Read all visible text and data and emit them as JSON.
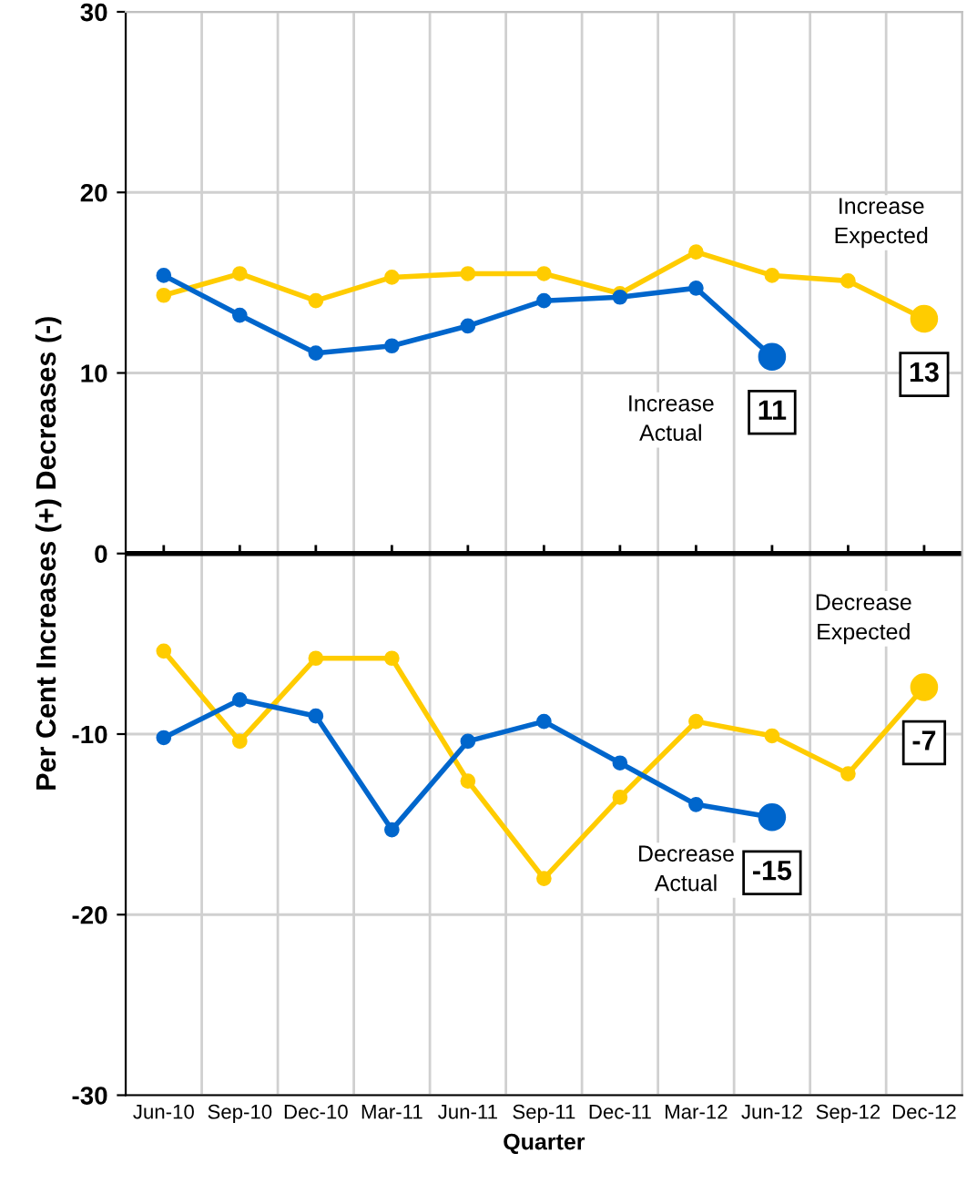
{
  "chart_data": {
    "type": "line",
    "xlabel": "Quarter",
    "ylabel": "Per Cent Increases (+) Decreases (-)",
    "categories": [
      "Jun-10",
      "Sep-10",
      "Dec-10",
      "Mar-11",
      "Jun-11",
      "Sep-11",
      "Dec-11",
      "Mar-12",
      "Jun-12",
      "Sep-12",
      "Dec-12"
    ],
    "ylim": [
      -30,
      30
    ],
    "yticks": [
      -30,
      -20,
      -10,
      0,
      10,
      20,
      30
    ],
    "grid": true,
    "marker": "circle",
    "line_style": "solid",
    "ref_lines": [
      {
        "axis": "y",
        "value": 0,
        "color": "#000000"
      }
    ],
    "series": [
      {
        "name": "Increase Actual",
        "color": "#0066cc",
        "values": [
          15.4,
          13.2,
          11.1,
          11.5,
          12.6,
          14.0,
          14.2,
          14.7,
          10.9,
          null,
          null
        ],
        "value_labels": [
          null,
          null,
          null,
          null,
          null,
          null,
          null,
          null,
          "11",
          null,
          null
        ]
      },
      {
        "name": "Increase Expected",
        "color": "#ffcc00",
        "values": [
          14.3,
          15.5,
          14.0,
          15.3,
          15.5,
          15.5,
          14.4,
          16.7,
          15.4,
          15.1,
          13.0
        ],
        "value_labels": [
          null,
          null,
          null,
          null,
          null,
          null,
          null,
          null,
          null,
          null,
          "13"
        ]
      },
      {
        "name": "Decrease Actual",
        "color": "#0066cc",
        "values": [
          -10.2,
          -8.1,
          -9.0,
          -15.3,
          -10.4,
          -9.3,
          -11.6,
          -13.9,
          -14.6,
          null,
          null
        ],
        "value_labels": [
          null,
          null,
          null,
          null,
          null,
          null,
          null,
          null,
          "-15",
          null,
          null
        ]
      },
      {
        "name": "Decrease Expected",
        "color": "#ffcc00",
        "values": [
          -5.4,
          -10.4,
          -5.8,
          -5.8,
          -12.6,
          -18.0,
          -13.5,
          -9.3,
          -10.1,
          -12.2,
          -7.4
        ],
        "value_labels": [
          null,
          null,
          null,
          null,
          null,
          null,
          null,
          null,
          null,
          null,
          "-7"
        ]
      }
    ]
  }
}
